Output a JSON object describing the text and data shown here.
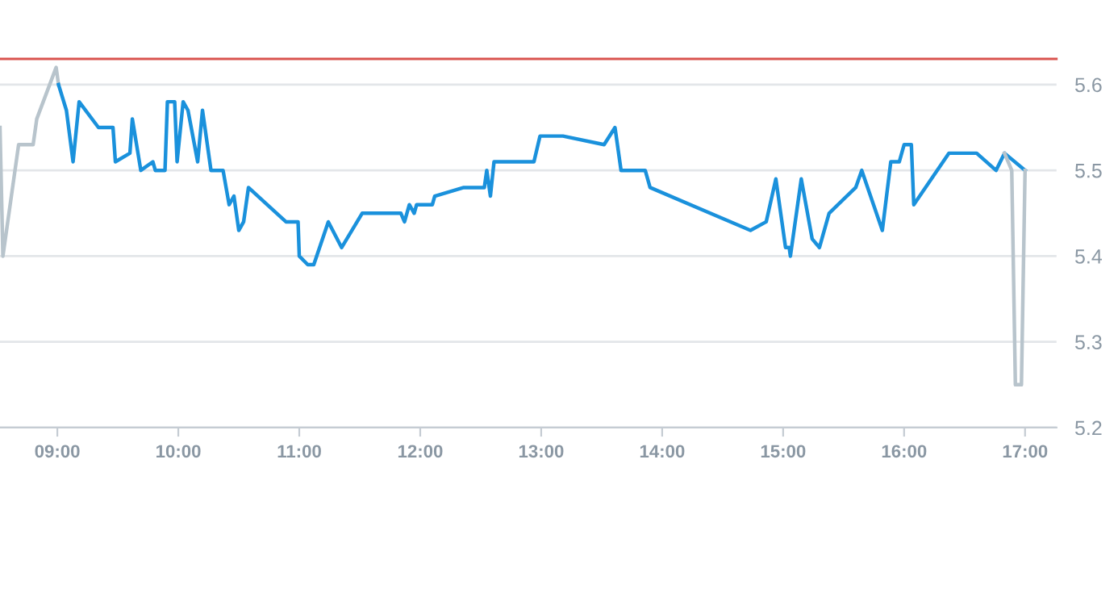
{
  "chart_data": {
    "type": "line",
    "series": [
      {
        "color": "#b8c4cc",
        "x": [
          8.526,
          8.55,
          8.68,
          8.8,
          8.83,
          8.99,
          9.01
        ],
        "values": [
          5.55,
          5.4,
          5.53,
          5.53,
          5.56,
          5.62,
          5.6
        ]
      },
      {
        "color": "#1a91dc",
        "x": [
          9.01,
          9.075,
          9.13,
          9.18,
          9.34,
          9.46,
          9.48,
          9.6,
          9.62,
          9.69,
          9.79,
          9.81,
          9.89,
          9.91,
          9.97,
          9.99,
          10.04,
          10.08,
          10.16,
          10.2,
          10.27,
          10.37,
          10.42,
          10.46,
          10.5,
          10.54,
          10.58,
          10.89,
          10.99,
          11.0,
          11.07,
          11.12,
          11.24,
          11.35,
          11.52,
          11.84,
          11.87,
          11.91,
          11.95,
          11.97,
          12.1,
          12.12,
          12.36,
          12.53,
          12.55,
          12.58,
          12.61,
          12.94,
          12.99,
          13.18,
          13.52,
          13.61,
          13.66,
          13.86,
          13.9,
          14.73,
          14.86,
          14.94,
          15.02,
          15.05,
          15.06,
          15.15,
          15.24,
          15.3,
          15.38,
          15.6,
          15.65,
          15.82,
          15.89,
          15.96,
          16.0,
          16.06,
          16.08,
          16.37,
          16.6,
          16.76,
          16.83,
          17.0
        ],
        "values": [
          5.6,
          5.57,
          5.51,
          5.58,
          5.55,
          5.55,
          5.51,
          5.52,
          5.56,
          5.5,
          5.51,
          5.5,
          5.5,
          5.58,
          5.58,
          5.51,
          5.58,
          5.57,
          5.51,
          5.57,
          5.5,
          5.5,
          5.46,
          5.47,
          5.43,
          5.44,
          5.48,
          5.44,
          5.44,
          5.4,
          5.39,
          5.39,
          5.44,
          5.41,
          5.45,
          5.45,
          5.44,
          5.46,
          5.45,
          5.46,
          5.46,
          5.47,
          5.48,
          5.48,
          5.5,
          5.47,
          5.51,
          5.51,
          5.54,
          5.54,
          5.53,
          5.55,
          5.5,
          5.5,
          5.48,
          5.43,
          5.44,
          5.49,
          5.41,
          5.41,
          5.4,
          5.49,
          5.42,
          5.41,
          5.45,
          5.48,
          5.5,
          5.43,
          5.51,
          5.51,
          5.53,
          5.53,
          5.46,
          5.52,
          5.52,
          5.5,
          5.52,
          5.5
        ]
      },
      {
        "color": "#b8c4cc",
        "x": [
          16.83,
          16.89,
          16.92,
          16.97,
          17.0
        ],
        "values": [
          5.52,
          5.5,
          5.25,
          5.25,
          5.5
        ]
      }
    ],
    "xlim": [
      8.526,
      17.26
    ],
    "xticks": [
      {
        "value": 9,
        "label": "09:00"
      },
      {
        "value": 10,
        "label": "10:00"
      },
      {
        "value": 11,
        "label": "11:00"
      },
      {
        "value": 12,
        "label": "12:00"
      },
      {
        "value": 13,
        "label": "13:00"
      },
      {
        "value": 14,
        "label": "14:00"
      },
      {
        "value": 15,
        "label": "15:00"
      },
      {
        "value": 16,
        "label": "16:00"
      },
      {
        "value": 17,
        "label": "17:00"
      }
    ],
    "ylim": [
      5.2,
      5.63
    ],
    "yticks": [
      5.2,
      5.3,
      5.4,
      5.5,
      5.6
    ],
    "ref_lines": [
      {
        "axis": "y",
        "value": 5.63,
        "color": "#d9534f"
      }
    ],
    "grid": "y",
    "marker": "none",
    "line_style": "solid"
  }
}
